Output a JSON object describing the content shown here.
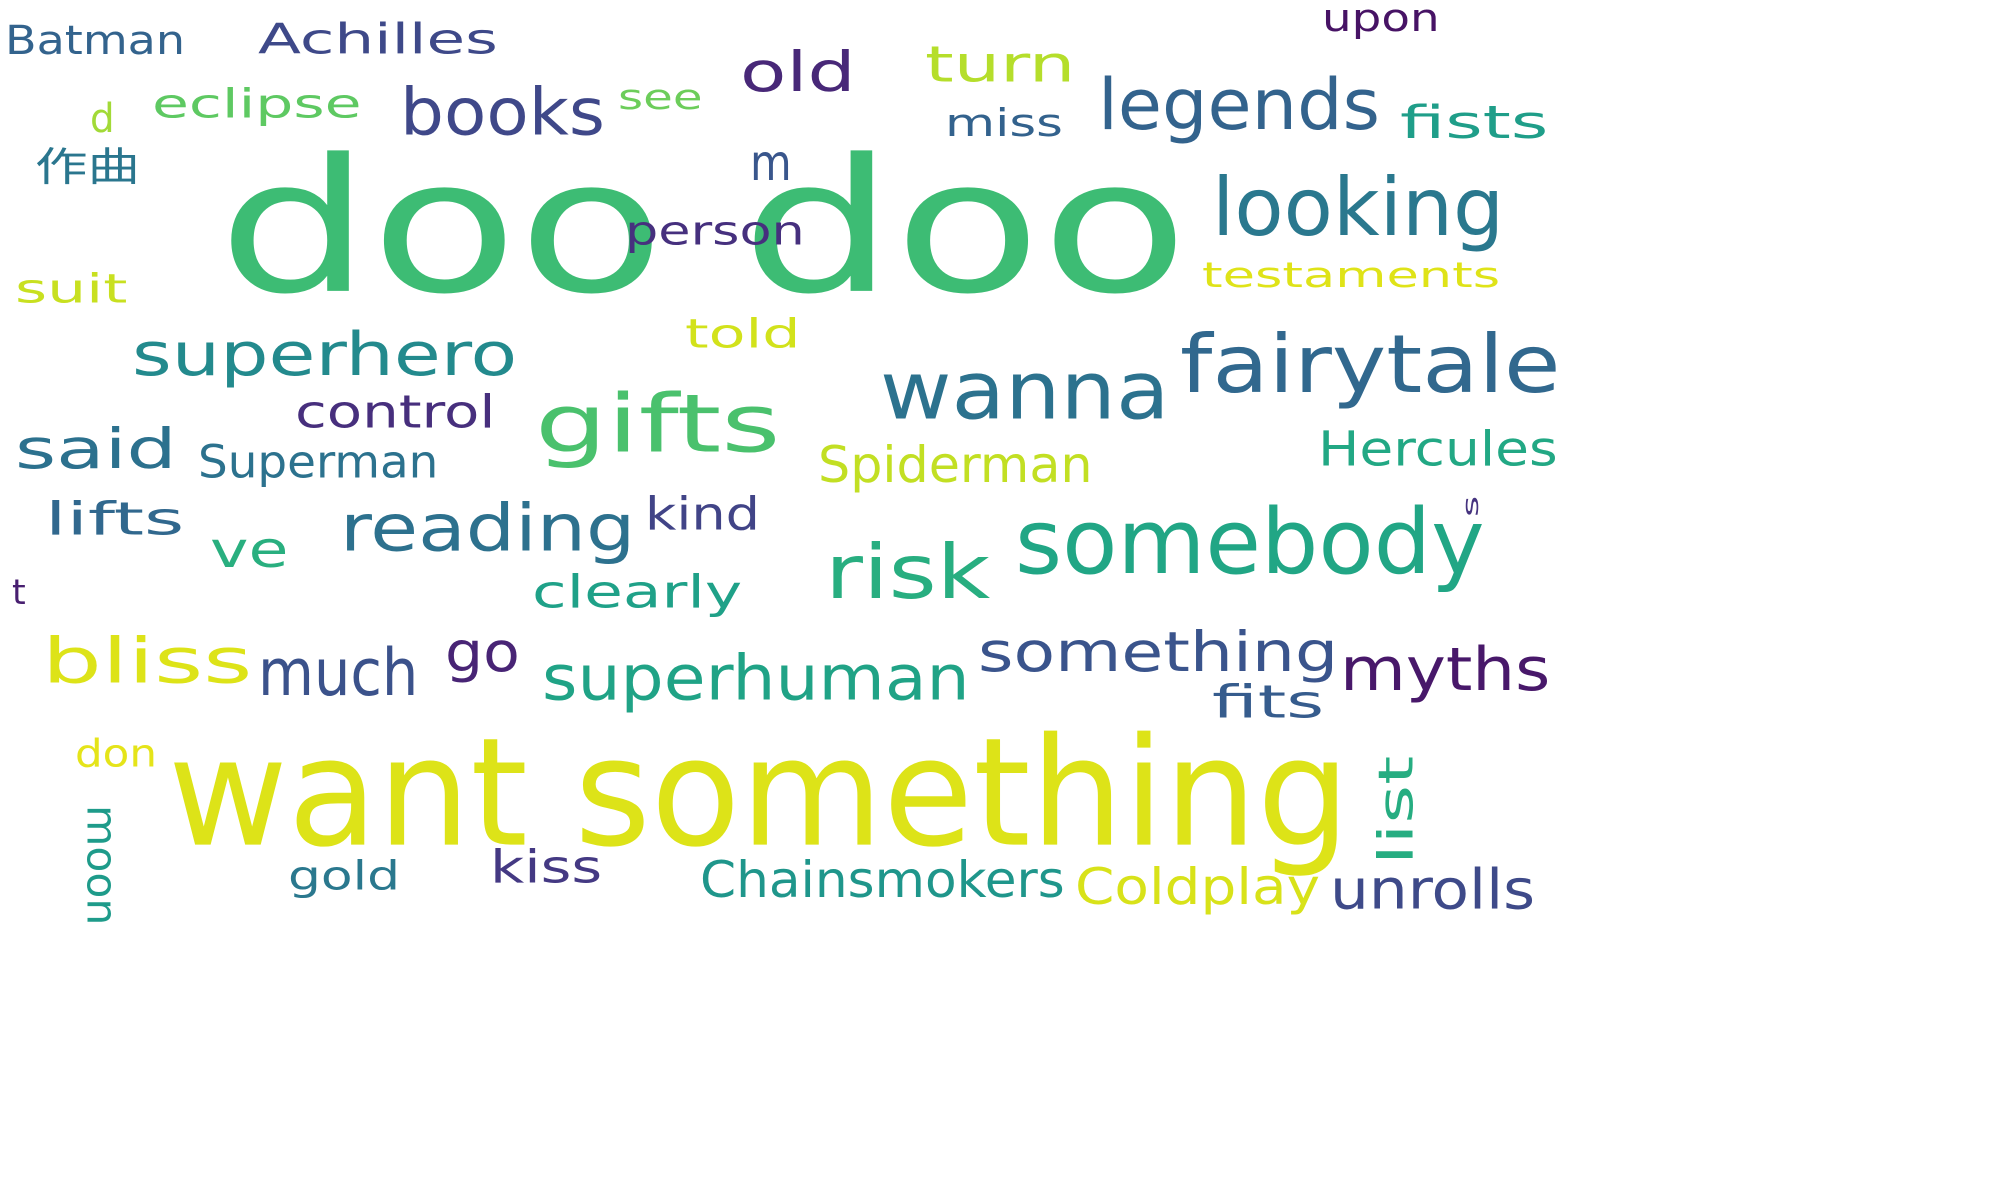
{
  "words": [
    {
      "text": "doo doo",
      "color": "#3dbc74"
    },
    {
      "text": "want something",
      "color": "#dde318"
    },
    {
      "text": "somebody",
      "color": "#21a685"
    },
    {
      "text": "wanna",
      "color": "#2c728e"
    },
    {
      "text": "fairytale",
      "color": "#31688e"
    },
    {
      "text": "looking",
      "color": "#2a788e"
    },
    {
      "text": "legends",
      "color": "#33638d"
    },
    {
      "text": "books",
      "color": "#3f4889"
    },
    {
      "text": "gifts",
      "color": "#4ac16d"
    },
    {
      "text": "superhero",
      "color": "#238a8d"
    },
    {
      "text": "reading",
      "color": "#2d718e"
    },
    {
      "text": "superhuman",
      "color": "#20a386"
    },
    {
      "text": "something",
      "color": "#3a548c"
    },
    {
      "text": "myths",
      "color": "#48186a"
    },
    {
      "text": "bliss",
      "color": "#dde318"
    },
    {
      "text": "much",
      "color": "#3b528b"
    },
    {
      "text": "risk",
      "color": "#28ae80"
    },
    {
      "text": "said",
      "color": "#2c718e"
    },
    {
      "text": "turn",
      "color": "#b5de2b"
    },
    {
      "text": "old",
      "color": "#482878"
    },
    {
      "text": "testaments",
      "color": "#dfe318"
    },
    {
      "text": "fists",
      "color": "#1f9e89"
    },
    {
      "text": "Hercules",
      "color": "#22a884"
    },
    {
      "text": "Spiderman",
      "color": "#c2df23"
    },
    {
      "text": "Superman",
      "color": "#2c728e"
    },
    {
      "text": "control",
      "color": "#472f7d"
    },
    {
      "text": "kind",
      "color": "#414487"
    },
    {
      "text": "clearly",
      "color": "#1fa188"
    },
    {
      "text": "go",
      "color": "#482475"
    },
    {
      "text": "fits",
      "color": "#365c8d"
    },
    {
      "text": "unrolls",
      "color": "#3e4a89"
    },
    {
      "text": "Coldplay",
      "color": "#d8e219"
    },
    {
      "text": "Chainsmokers",
      "color": "#1f968b"
    },
    {
      "text": "kiss",
      "color": "#443983"
    },
    {
      "text": "gold",
      "color": "#2a788e"
    },
    {
      "text": "don",
      "color": "#e5e419"
    },
    {
      "text": "moon",
      "color": "#1e9b8a"
    },
    {
      "text": "list",
      "color": "#26ad81"
    },
    {
      "text": "lifts",
      "color": "#31688e"
    },
    {
      "text": "ve",
      "color": "#29af7f"
    },
    {
      "text": "t",
      "color": "#481f70"
    },
    {
      "text": "suit",
      "color": "#c8e020"
    },
    {
      "text": "person",
      "color": "#46307e"
    },
    {
      "text": "told",
      "color": "#d2e21b"
    },
    {
      "text": "m",
      "color": "#39568c"
    },
    {
      "text": "see",
      "color": "#6ccd5a"
    },
    {
      "text": "eclipse",
      "color": "#5ec962"
    },
    {
      "text": "d",
      "color": "#a2da37"
    },
    {
      "text": "作曲",
      "color": "#2a768e"
    },
    {
      "text": "miss",
      "color": "#33628d"
    },
    {
      "text": "upon",
      "color": "#471365"
    },
    {
      "text": "Batman",
      "color": "#33638d"
    },
    {
      "text": "Achilles",
      "color": "#3e4989"
    },
    {
      "text": "s",
      "color": "#46337f"
    }
  ]
}
